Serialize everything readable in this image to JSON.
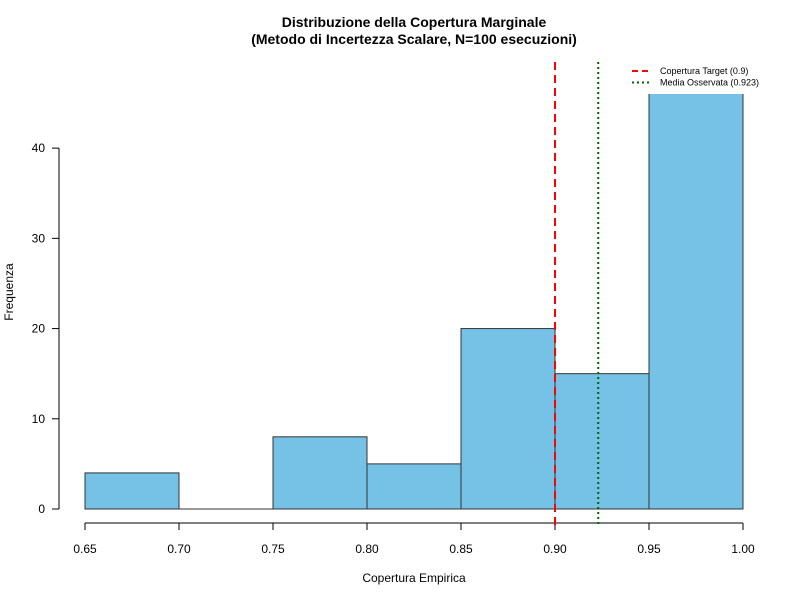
{
  "chart_data": {
    "type": "bar",
    "title": "Distribuzione della Copertura Marginale",
    "subtitle": "(Metodo di Incertezza Scalare, N=100 esecuzioni)",
    "xlabel": "Copertura Empirica",
    "ylabel": "Frequenza",
    "bins": [
      {
        "from": 0.65,
        "to": 0.7,
        "count": 4
      },
      {
        "from": 0.7,
        "to": 0.75,
        "count": 0
      },
      {
        "from": 0.75,
        "to": 0.8,
        "count": 8
      },
      {
        "from": 0.8,
        "to": 0.85,
        "count": 5
      },
      {
        "from": 0.85,
        "to": 0.9,
        "count": 20
      },
      {
        "from": 0.9,
        "to": 0.95,
        "count": 15
      },
      {
        "from": 0.95,
        "to": 1.0,
        "count": 48
      }
    ],
    "xlim": [
      0.65,
      1.0
    ],
    "ylim": [
      0,
      46
    ],
    "x_ticks": [
      "0.65",
      "0.70",
      "0.75",
      "0.80",
      "0.85",
      "0.90",
      "0.95",
      "1.00"
    ],
    "y_ticks": [
      "0",
      "10",
      "20",
      "30",
      "40"
    ],
    "bar_color": "#76c1e6",
    "bar_edge_color": "#333333",
    "reference_lines": [
      {
        "label": "Copertura Target (0.9)",
        "x": 0.9,
        "color": "#ff0000",
        "style": "dashed"
      },
      {
        "label": "Media Osservata (0.923)",
        "x": 0.923,
        "color": "#006400",
        "style": "dotted"
      }
    ],
    "legend_position": "top-right",
    "grid": false
  }
}
